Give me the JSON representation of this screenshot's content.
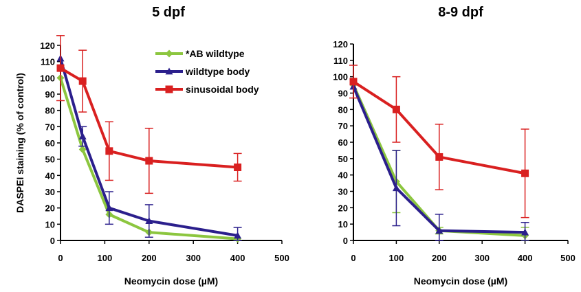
{
  "chart_data": [
    {
      "type": "line",
      "title": "5 dpf",
      "xlabel": "Neomycin dose (µM)",
      "ylabel": "DASPEI staining (% of control)",
      "xlim": [
        0,
        500
      ],
      "ylim": [
        0,
        120
      ],
      "xticks": [
        0,
        100,
        200,
        300,
        400,
        500
      ],
      "yticks": [
        0,
        10,
        20,
        30,
        40,
        50,
        60,
        70,
        80,
        90,
        100,
        110,
        120
      ],
      "legend": "top-right",
      "series": [
        {
          "name": "*AB wildtype",
          "color": "#8cc63f",
          "marker": "diamond",
          "x": [
            0,
            50,
            110,
            200,
            400
          ],
          "y": [
            100,
            56,
            16,
            5,
            1
          ],
          "err": [
            0,
            0,
            0,
            0,
            0
          ]
        },
        {
          "name": "wildtype body",
          "color": "#2b1f8c",
          "marker": "triangle",
          "x": [
            0,
            50,
            110,
            200,
            400
          ],
          "y": [
            112,
            64,
            20,
            12,
            3
          ],
          "err": [
            0,
            6,
            10,
            10,
            5
          ]
        },
        {
          "name": "sinusoidal body",
          "color": "#d92020",
          "marker": "square",
          "x": [
            0,
            50,
            110,
            200,
            400
          ],
          "y": [
            106,
            98,
            55,
            49,
            45
          ],
          "err": [
            20,
            19,
            18,
            20,
            8.5
          ]
        }
      ]
    },
    {
      "type": "line",
      "title": "8-9 dpf",
      "xlabel": "Neomycin dose (µM)",
      "ylabel": "",
      "xlim": [
        0,
        500
      ],
      "ylim": [
        0,
        120
      ],
      "xticks": [
        0,
        100,
        200,
        300,
        400,
        500
      ],
      "yticks": [
        0,
        10,
        20,
        30,
        40,
        50,
        60,
        70,
        80,
        90,
        100,
        110,
        120
      ],
      "series": [
        {
          "name": "*AB wildtype",
          "color": "#8cc63f",
          "marker": "diamond",
          "x": [
            0,
            100,
            200,
            400
          ],
          "y": [
            95,
            36,
            6,
            3
          ],
          "err": [
            0,
            19,
            2,
            5
          ]
        },
        {
          "name": "wildtype body",
          "color": "#2b1f8c",
          "marker": "triangle",
          "x": [
            0,
            100,
            200,
            400
          ],
          "y": [
            94,
            32,
            6,
            5
          ],
          "err": [
            0,
            23,
            10,
            6
          ]
        },
        {
          "name": "sinusoidal body",
          "color": "#d92020",
          "marker": "square",
          "x": [
            0,
            100,
            200,
            400
          ],
          "y": [
            97,
            80,
            51,
            41
          ],
          "err": [
            10,
            20,
            20,
            27
          ]
        }
      ]
    }
  ]
}
